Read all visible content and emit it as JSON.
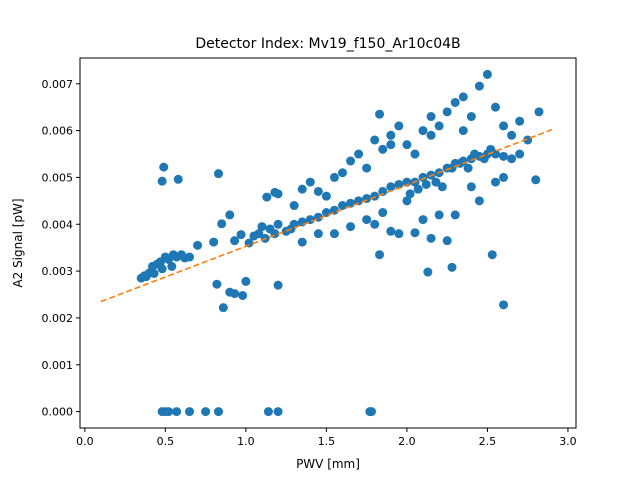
{
  "chart_data": {
    "type": "scatter",
    "title": "Detector Index: Mv19_f150_Ar10c04B",
    "xlabel": "PWV [mm]",
    "ylabel": "A2 Signal [pW]",
    "xlim": [
      -0.03,
      3.05
    ],
    "ylim": [
      -0.00035,
      0.00755
    ],
    "xticks": [
      0.0,
      0.5,
      1.0,
      1.5,
      2.0,
      2.5,
      3.0
    ],
    "xtick_labels": [
      "0.0",
      "0.5",
      "1.0",
      "1.5",
      "2.0",
      "2.5",
      "3.0"
    ],
    "yticks": [
      0.0,
      0.001,
      0.002,
      0.003,
      0.004,
      0.005,
      0.006,
      0.007
    ],
    "ytick_labels": [
      "0.000",
      "0.001",
      "0.002",
      "0.003",
      "0.004",
      "0.005",
      "0.006",
      "0.007"
    ],
    "grid": false,
    "legend": "none",
    "colors": {
      "points": "#1f77b4",
      "fit_line": "#ff7f0e",
      "axes": "#000000",
      "background": "#ffffff"
    },
    "series": [
      {
        "name": "measurements",
        "kind": "scatter",
        "points": [
          [
            0.35,
            0.00285
          ],
          [
            0.37,
            0.0029
          ],
          [
            0.38,
            0.00288
          ],
          [
            0.4,
            0.00296
          ],
          [
            0.42,
            0.0031
          ],
          [
            0.43,
            0.00295
          ],
          [
            0.45,
            0.00315
          ],
          [
            0.47,
            0.0032
          ],
          [
            0.48,
            0.00305
          ],
          [
            0.5,
            0.0033
          ],
          [
            0.52,
            0.00325
          ],
          [
            0.54,
            0.0031
          ],
          [
            0.55,
            0.00335
          ],
          [
            0.57,
            0.0033
          ],
          [
            0.6,
            0.00335
          ],
          [
            0.62,
            0.00328
          ],
          [
            0.65,
            0.0033
          ],
          [
            0.7,
            0.00355
          ],
          [
            0.48,
            0.00492
          ],
          [
            0.49,
            0.00522
          ],
          [
            0.58,
            0.00496
          ],
          [
            0.83,
            0.00508
          ],
          [
            0.82,
            0.00272
          ],
          [
            0.86,
            0.00222
          ],
          [
            0.9,
            0.00255
          ],
          [
            0.93,
            0.00252
          ],
          [
            0.98,
            0.00248
          ],
          [
            1.0,
            0.00278
          ],
          [
            1.2,
            0.0027
          ],
          [
            0.8,
            0.00362
          ],
          [
            0.85,
            0.00401
          ],
          [
            0.9,
            0.0042
          ],
          [
            0.93,
            0.00365
          ],
          [
            0.97,
            0.00378
          ],
          [
            1.02,
            0.0036
          ],
          [
            1.05,
            0.00375
          ],
          [
            1.08,
            0.0038
          ],
          [
            1.1,
            0.00395
          ],
          [
            1.12,
            0.0037
          ],
          [
            1.15,
            0.0039
          ],
          [
            1.18,
            0.0038
          ],
          [
            1.2,
            0.004
          ],
          [
            1.25,
            0.00385
          ],
          [
            1.28,
            0.0039
          ],
          [
            1.3,
            0.004
          ],
          [
            1.35,
            0.00405
          ],
          [
            1.4,
            0.0041
          ],
          [
            1.45,
            0.00415
          ],
          [
            1.5,
            0.00425
          ],
          [
            1.55,
            0.0043
          ],
          [
            1.6,
            0.0044
          ],
          [
            1.65,
            0.00445
          ],
          [
            1.7,
            0.0045
          ],
          [
            1.75,
            0.00455
          ],
          [
            1.8,
            0.0046
          ],
          [
            1.85,
            0.0047
          ],
          [
            1.9,
            0.0048
          ],
          [
            1.95,
            0.00485
          ],
          [
            2.0,
            0.0049
          ],
          [
            2.05,
            0.0049
          ],
          [
            2.1,
            0.005
          ],
          [
            2.15,
            0.00505
          ],
          [
            2.2,
            0.0051
          ],
          [
            2.25,
            0.0052
          ],
          [
            2.3,
            0.0053
          ],
          [
            2.35,
            0.00535
          ],
          [
            2.4,
            0.0054
          ],
          [
            2.45,
            0.00545
          ],
          [
            2.5,
            0.0055
          ],
          [
            2.55,
            0.0055
          ],
          [
            2.6,
            0.00545
          ],
          [
            2.65,
            0.0054
          ],
          [
            2.7,
            0.0055
          ],
          [
            1.13,
            0.00458
          ],
          [
            1.18,
            0.00468
          ],
          [
            1.2,
            0.00465
          ],
          [
            1.3,
            0.0044
          ],
          [
            1.35,
            0.00475
          ],
          [
            1.4,
            0.0049
          ],
          [
            1.45,
            0.0047
          ],
          [
            1.5,
            0.0046
          ],
          [
            1.55,
            0.005
          ],
          [
            1.6,
            0.0051
          ],
          [
            1.65,
            0.00535
          ],
          [
            1.7,
            0.0055
          ],
          [
            1.75,
            0.0052
          ],
          [
            1.8,
            0.0058
          ],
          [
            1.85,
            0.0056
          ],
          [
            1.9,
            0.0059
          ],
          [
            1.95,
            0.0061
          ],
          [
            2.0,
            0.0057
          ],
          [
            2.05,
            0.0055
          ],
          [
            2.1,
            0.006
          ],
          [
            2.15,
            0.0063
          ],
          [
            2.2,
            0.0061
          ],
          [
            2.25,
            0.0064
          ],
          [
            2.3,
            0.0066
          ],
          [
            2.35,
            0.006
          ],
          [
            2.4,
            0.0063
          ],
          [
            2.45,
            0.00695
          ],
          [
            2.5,
            0.0072
          ],
          [
            2.55,
            0.0065
          ],
          [
            2.6,
            0.0061
          ],
          [
            2.65,
            0.0059
          ],
          [
            2.7,
            0.0062
          ],
          [
            2.75,
            0.0058
          ],
          [
            2.82,
            0.0064
          ],
          [
            1.83,
            0.00635
          ],
          [
            1.9,
            0.0057
          ],
          [
            2.35,
            0.00672
          ],
          [
            2.15,
            0.0059
          ],
          [
            1.35,
            0.00362
          ],
          [
            1.45,
            0.0038
          ],
          [
            1.55,
            0.0038
          ],
          [
            1.65,
            0.00395
          ],
          [
            1.75,
            0.0041
          ],
          [
            1.8,
            0.004
          ],
          [
            1.85,
            0.00425
          ],
          [
            1.9,
            0.00385
          ],
          [
            1.95,
            0.0038
          ],
          [
            2.05,
            0.00382
          ],
          [
            2.1,
            0.0041
          ],
          [
            2.15,
            0.0037
          ],
          [
            2.2,
            0.0042
          ],
          [
            2.25,
            0.00365
          ],
          [
            2.3,
            0.0042
          ],
          [
            2.4,
            0.0048
          ],
          [
            2.45,
            0.0045
          ],
          [
            2.55,
            0.0049
          ],
          [
            2.6,
            0.005
          ],
          [
            2.8,
            0.00495
          ],
          [
            1.83,
            0.00335
          ],
          [
            2.13,
            0.00298
          ],
          [
            2.28,
            0.00308
          ],
          [
            2.53,
            0.00335
          ],
          [
            2.6,
            0.00228
          ],
          [
            2.0,
            0.0045
          ],
          [
            2.02,
            0.00465
          ],
          [
            2.07,
            0.00475
          ],
          [
            2.12,
            0.00485
          ],
          [
            2.18,
            0.0049
          ],
          [
            2.22,
            0.0048
          ],
          [
            2.28,
            0.0052
          ],
          [
            2.33,
            0.0053
          ],
          [
            2.38,
            0.0052
          ],
          [
            2.42,
            0.0055
          ],
          [
            2.48,
            0.0054
          ],
          [
            2.52,
            0.0056
          ],
          [
            0.48,
            0.0
          ],
          [
            0.5,
            0.0
          ],
          [
            0.52,
            0.0
          ],
          [
            0.57,
            0.0
          ],
          [
            0.65,
            0.0
          ],
          [
            0.75,
            0.0
          ],
          [
            0.83,
            0.0
          ],
          [
            1.14,
            0.0
          ],
          [
            1.2,
            0.0
          ],
          [
            1.77,
            0.0
          ],
          [
            1.78,
            0.0
          ]
        ]
      },
      {
        "name": "linear fit",
        "kind": "line",
        "style": "dashed",
        "points": [
          [
            0.1,
            0.00235
          ],
          [
            2.9,
            0.00602
          ]
        ]
      }
    ]
  }
}
